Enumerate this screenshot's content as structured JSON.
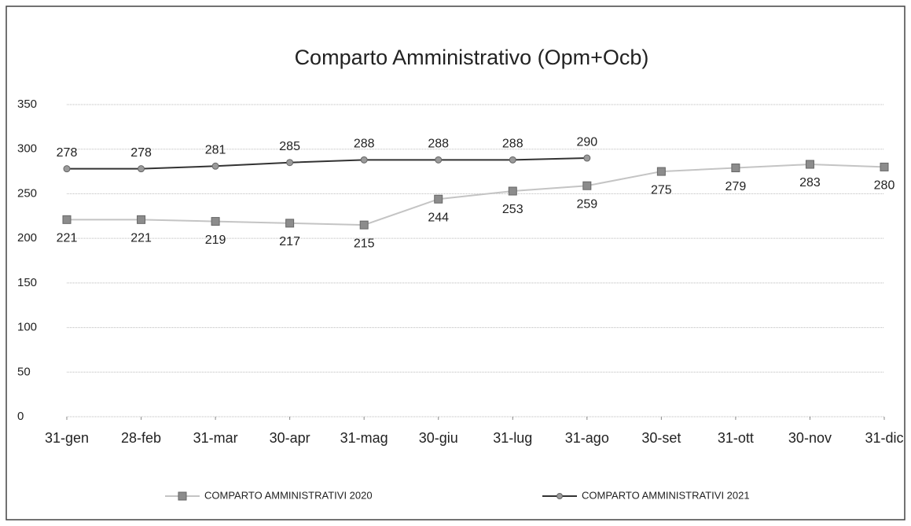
{
  "chart_data": {
    "type": "line",
    "title": "Comparto Amministrativo (Opm+Ocb)",
    "categories": [
      "31-gen",
      "28-feb",
      "31-mar",
      "30-apr",
      "31-mag",
      "30-giu",
      "31-lug",
      "31-ago",
      "30-set",
      "31-ott",
      "30-nov",
      "31-dic"
    ],
    "series": [
      {
        "name": "COMPARTO AMMINISTRATIVI 2020",
        "color": "#c4c4c4",
        "marker_color": "#8c8c8c",
        "values": [
          221,
          221,
          219,
          217,
          215,
          244,
          253,
          259,
          275,
          279,
          283,
          280
        ]
      },
      {
        "name": "COMPARTO AMMINISTRATIVI 2021",
        "color": "#333333",
        "marker_color": "#9a9a9a",
        "values": [
          278,
          278,
          281,
          285,
          288,
          288,
          288,
          290,
          null,
          null,
          null,
          null
        ]
      }
    ],
    "ylim": [
      0,
      350
    ],
    "yticks": [
      0,
      50,
      100,
      150,
      200,
      250,
      300,
      350
    ],
    "grid": true,
    "legend": "bottom"
  }
}
